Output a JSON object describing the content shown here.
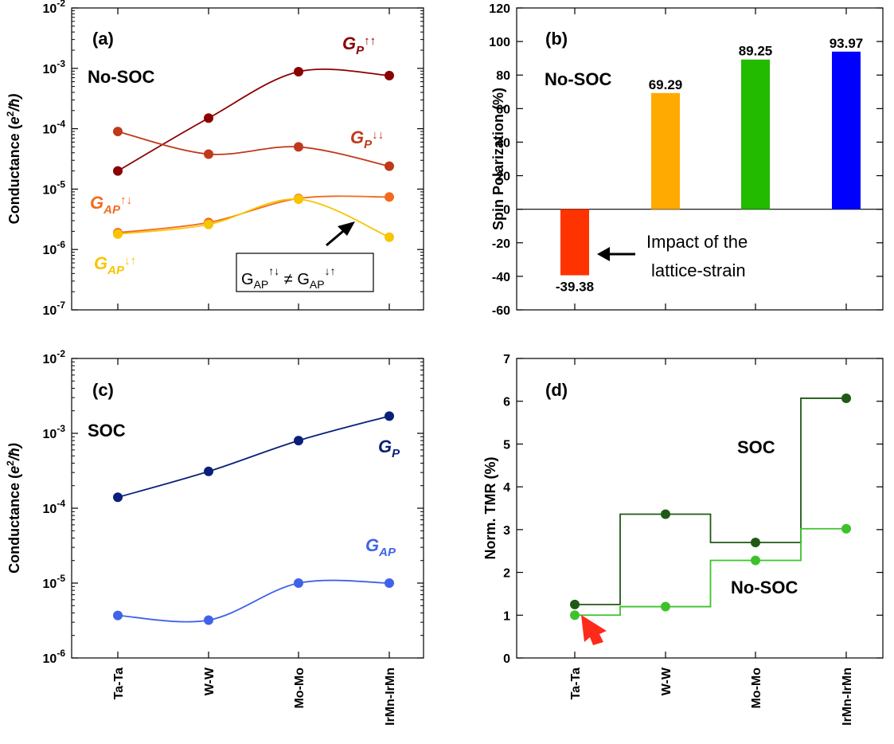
{
  "chart_data": [
    {
      "panel": "(a)",
      "type": "line",
      "categories": [
        "Ta-Ta",
        "W-W",
        "Mo-Mo",
        "IrMn-IrMn"
      ],
      "ylabel": "Conductance (e²/ħ)",
      "yscale": "log",
      "ylim": [
        1e-07,
        0.01
      ],
      "yticks": [
        "10-7",
        "10-6",
        "10-5",
        "10-4",
        "10-3",
        "10-2"
      ],
      "annotation": "No-SOC",
      "inset_text": "G_AP↑↓ ≠ G_AP↓↑",
      "series": [
        {
          "name": "G_P↑↑",
          "color": "#8b0000",
          "values": [
            2e-05,
            0.00015,
            0.00088,
            0.00076
          ]
        },
        {
          "name": "G_P↓↓",
          "color": "#c0391b",
          "values": [
            9e-05,
            3.8e-05,
            5e-05,
            2.4e-05
          ]
        },
        {
          "name": "G_AP↑↓",
          "color": "#f26b1d",
          "values": [
            1.9e-06,
            2.8e-06,
            7e-06,
            7.4e-06
          ]
        },
        {
          "name": "G_AP↓↑",
          "color": "#f7c500",
          "values": [
            1.8e-06,
            2.6e-06,
            6.8e-06,
            1.6e-06
          ]
        }
      ]
    },
    {
      "panel": "(b)",
      "type": "bar",
      "categories": [
        "Ta-Ta",
        "W-W",
        "Mo-Mo",
        "IrMn-IrMn"
      ],
      "ylabel": "Spin Polarization (%)",
      "ylim": [
        -60,
        120
      ],
      "yticks": [
        -60,
        -40,
        -20,
        0,
        20,
        40,
        60,
        80,
        100,
        120
      ],
      "annotation": "No-SOC",
      "arrow_text_line1": "Impact of the",
      "arrow_text_line2": "lattice-strain",
      "values": [
        -39.38,
        69.29,
        89.25,
        93.97
      ],
      "value_labels": [
        "-39.38",
        "69.29",
        "89.25",
        "93.97"
      ],
      "colors": [
        "#ff3300",
        "#ffaa00",
        "#22bb00",
        "#0000ff"
      ]
    },
    {
      "panel": "(c)",
      "type": "line",
      "categories": [
        "Ta-Ta",
        "W-W",
        "Mo-Mo",
        "IrMn-IrMn"
      ],
      "ylabel": "Conductance (e²/ħ)",
      "yscale": "log",
      "ylim": [
        1e-06,
        0.01
      ],
      "yticks": [
        "10-6",
        "10-5",
        "10-4",
        "10-3",
        "10-2"
      ],
      "annotation": "SOC",
      "series": [
        {
          "name": "G_P",
          "color": "#0a1f7a",
          "values": [
            0.00014,
            0.00031,
            0.0008,
            0.0017
          ]
        },
        {
          "name": "G_AP",
          "color": "#3f63e8",
          "values": [
            3.7e-06,
            3.2e-06,
            1e-05,
            1e-05
          ]
        }
      ]
    },
    {
      "panel": "(d)",
      "type": "line",
      "categories": [
        "Ta-Ta",
        "W-W",
        "Mo-Mo",
        "IrMn-IrMn"
      ],
      "ylabel": "Norm. TMR (%)",
      "ylim": [
        0,
        7
      ],
      "yticks": [
        0,
        1,
        2,
        3,
        4,
        5,
        6,
        7
      ],
      "series": [
        {
          "name": "SOC",
          "color": "#1f5a14",
          "values": [
            1.25,
            3.36,
            2.7,
            6.07
          ]
        },
        {
          "name": "No-SOC",
          "color": "#3dc22b",
          "values": [
            1.0,
            1.2,
            2.28,
            3.02
          ]
        }
      ]
    }
  ]
}
